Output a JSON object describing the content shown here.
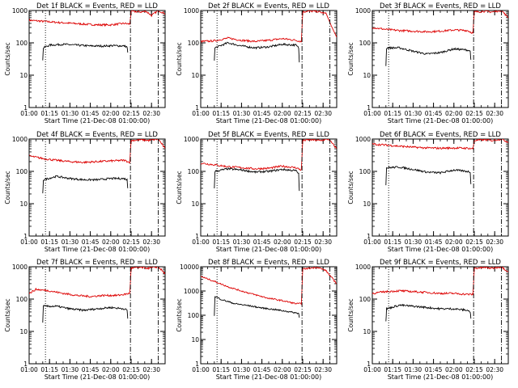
{
  "page": {
    "background": "#ffffff"
  },
  "colors": {
    "events": "#000000",
    "lld": "#dd0000",
    "axis": "#000000"
  },
  "chart_data": [
    {
      "type": "line",
      "panel": "det-1f",
      "title": "Det 1f BLACK = Events, RED = LLD",
      "xlabel": "Start Time (21-Dec-08 01:00:00)",
      "ylabel": "Counts/sec",
      "xlim": [
        0,
        100
      ],
      "ylim": [
        1,
        1000
      ],
      "yscale": "log",
      "xticks": [
        0,
        15,
        30,
        45,
        60,
        75,
        90
      ],
      "xtick_labels": [
        "01:00",
        "01:15",
        "01:30",
        "01:45",
        "02:00",
        "02:15",
        "02:30"
      ],
      "yticks": [
        1,
        10,
        100,
        1000
      ],
      "ytick_labels": [
        "1",
        "10",
        "100",
        "1000"
      ],
      "markers": [
        {
          "x": 12,
          "style": "dotted"
        },
        {
          "x": 74.5,
          "style": "dashdot"
        },
        {
          "x": 95,
          "style": "dashdot"
        }
      ],
      "series": [
        {
          "color": "#dd0000",
          "x": [
            0,
            20,
            40,
            50,
            60,
            70,
            74,
            75,
            82,
            86,
            90,
            95,
            100
          ],
          "y": [
            500,
            430,
            380,
            360,
            360,
            400,
            380,
            950,
            900,
            950,
            700,
            1000,
            800
          ]
        },
        {
          "color": "#000000",
          "x": [
            10,
            10.5,
            15,
            25,
            35,
            45,
            55,
            62,
            70,
            72,
            72.5
          ],
          "y": [
            30,
            70,
            85,
            90,
            85,
            80,
            80,
            82,
            80,
            75,
            50
          ]
        }
      ]
    },
    {
      "type": "line",
      "panel": "det-2f",
      "title": "Det 2f BLACK = Events, RED = LLD",
      "xlabel": "Start Time (21-Dec-08 01:00:00)",
      "ylabel": "Counts/sec",
      "xlim": [
        0,
        100
      ],
      "ylim": [
        1,
        1000
      ],
      "yscale": "log",
      "xticks": [
        0,
        15,
        30,
        45,
        60,
        75,
        90
      ],
      "xtick_labels": [
        "01:00",
        "01:15",
        "01:30",
        "01:45",
        "02:00",
        "02:15",
        "02:30"
      ],
      "yticks": [
        1,
        10,
        100,
        1000
      ],
      "ytick_labels": [
        "1",
        "10",
        "100",
        "1000"
      ],
      "markers": [
        {
          "x": 12,
          "style": "dotted"
        },
        {
          "x": 74.5,
          "style": "dashdot"
        },
        {
          "x": 95,
          "style": "dashdot"
        }
      ],
      "series": [
        {
          "color": "#dd0000",
          "x": [
            0,
            10,
            20,
            30,
            40,
            50,
            60,
            70,
            74,
            75,
            78,
            85,
            92,
            100
          ],
          "y": [
            110,
            115,
            140,
            120,
            110,
            120,
            135,
            120,
            110,
            900,
            950,
            950,
            800,
            150
          ]
        },
        {
          "color": "#000000",
          "x": [
            10,
            10.5,
            20,
            30,
            40,
            50,
            60,
            70,
            72,
            72.5
          ],
          "y": [
            30,
            70,
            100,
            80,
            70,
            75,
            90,
            85,
            70,
            25
          ]
        }
      ]
    },
    {
      "type": "line",
      "panel": "det-3f",
      "title": "Det 3f BLACK = Events, RED = LLD",
      "xlabel": "Start Time (21-Dec-08 01:00:00)",
      "ylabel": "Counts/sec",
      "xlim": [
        0,
        100
      ],
      "ylim": [
        1,
        1000
      ],
      "yscale": "log",
      "xticks": [
        0,
        15,
        30,
        45,
        60,
        75,
        90
      ],
      "xtick_labels": [
        "01:00",
        "01:15",
        "01:30",
        "01:45",
        "02:00",
        "02:15",
        "02:30"
      ],
      "yticks": [
        1,
        10,
        100,
        1000
      ],
      "ytick_labels": [
        "1",
        "10",
        "100",
        "1000"
      ],
      "markers": [
        {
          "x": 12,
          "style": "dotted"
        },
        {
          "x": 74.5,
          "style": "dashdot"
        },
        {
          "x": 95,
          "style": "dashdot"
        }
      ],
      "series": [
        {
          "color": "#dd0000",
          "x": [
            0,
            10,
            20,
            30,
            40,
            50,
            60,
            70,
            74,
            75,
            82,
            88,
            95,
            100
          ],
          "y": [
            300,
            260,
            240,
            230,
            220,
            230,
            250,
            240,
            200,
            900,
            950,
            900,
            1000,
            600
          ]
        },
        {
          "color": "#000000",
          "x": [
            10,
            10.5,
            20,
            30,
            40,
            50,
            60,
            70,
            72,
            72.5
          ],
          "y": [
            20,
            70,
            70,
            55,
            45,
            50,
            65,
            60,
            55,
            30
          ]
        }
      ]
    },
    {
      "type": "line",
      "panel": "det-4f",
      "title": "Det 4f BLACK = Events, RED = LLD",
      "xlabel": "Start Time (21-Dec-08 01:00:00)",
      "ylabel": "Counts/sec",
      "xlim": [
        0,
        100
      ],
      "ylim": [
        1,
        1000
      ],
      "yscale": "log",
      "xticks": [
        0,
        15,
        30,
        45,
        60,
        75,
        90
      ],
      "xtick_labels": [
        "01:00",
        "01:15",
        "01:30",
        "01:45",
        "02:00",
        "02:15",
        "02:30"
      ],
      "yticks": [
        1,
        10,
        100,
        1000
      ],
      "ytick_labels": [
        "1",
        "10",
        "100",
        "1000"
      ],
      "markers": [
        {
          "x": 12,
          "style": "dotted"
        },
        {
          "x": 74.5,
          "style": "dashdot"
        },
        {
          "x": 95,
          "style": "dashdot"
        }
      ],
      "series": [
        {
          "color": "#dd0000",
          "x": [
            0,
            10,
            20,
            30,
            40,
            50,
            60,
            70,
            74,
            75,
            82,
            88,
            95,
            100
          ],
          "y": [
            300,
            250,
            220,
            200,
            190,
            200,
            210,
            220,
            190,
            900,
            950,
            900,
            1000,
            500
          ]
        },
        {
          "color": "#000000",
          "x": [
            10,
            10.5,
            20,
            30,
            40,
            50,
            60,
            70,
            72,
            72.5
          ],
          "y": [
            20,
            55,
            70,
            60,
            55,
            55,
            60,
            60,
            55,
            30
          ]
        }
      ]
    },
    {
      "type": "line",
      "panel": "det-5f",
      "title": "Det 5f BLACK = Events, RED = LLD",
      "xlabel": "Start Time (21-Dec-08 01:00:00)",
      "ylabel": "Counts/sec",
      "xlim": [
        0,
        100
      ],
      "ylim": [
        1,
        1000
      ],
      "yscale": "log",
      "xticks": [
        0,
        15,
        30,
        45,
        60,
        75,
        90
      ],
      "xtick_labels": [
        "01:00",
        "01:15",
        "01:30",
        "01:45",
        "02:00",
        "02:15",
        "02:30"
      ],
      "yticks": [
        1,
        10,
        100,
        1000
      ],
      "ytick_labels": [
        "1",
        "10",
        "100",
        "1000"
      ],
      "markers": [
        {
          "x": 12,
          "style": "dotted"
        },
        {
          "x": 74.5,
          "style": "dashdot"
        },
        {
          "x": 95,
          "style": "dashdot"
        }
      ],
      "series": [
        {
          "color": "#dd0000",
          "x": [
            0,
            10,
            20,
            30,
            40,
            50,
            60,
            70,
            74,
            75,
            80,
            88,
            94,
            100
          ],
          "y": [
            180,
            160,
            140,
            130,
            120,
            125,
            145,
            130,
            110,
            900,
            950,
            900,
            1000,
            500
          ]
        },
        {
          "color": "#000000",
          "x": [
            10,
            10.5,
            20,
            30,
            40,
            50,
            60,
            70,
            72,
            72.5
          ],
          "y": [
            30,
            100,
            120,
            110,
            95,
            100,
            115,
            105,
            85,
            25
          ]
        }
      ]
    },
    {
      "type": "line",
      "panel": "det-6f",
      "title": "Det 6f BLACK = Events, RED = LLD",
      "xlabel": "Start Time (21-Dec-08 01:00:00)",
      "ylabel": "Counts/sec",
      "xlim": [
        0,
        100
      ],
      "ylim": [
        1,
        1000
      ],
      "yscale": "log",
      "xticks": [
        0,
        15,
        30,
        45,
        60,
        75,
        90
      ],
      "xtick_labels": [
        "01:00",
        "01:15",
        "01:30",
        "01:45",
        "02:00",
        "02:15",
        "02:30"
      ],
      "yticks": [
        1,
        10,
        100,
        1000
      ],
      "ytick_labels": [
        "1",
        "10",
        "100",
        "1000"
      ],
      "markers": [
        {
          "x": 12,
          "style": "dotted"
        },
        {
          "x": 74.5,
          "style": "dashdot"
        },
        {
          "x": 95,
          "style": "dashdot"
        }
      ],
      "series": [
        {
          "color": "#dd0000",
          "x": [
            0,
            10,
            20,
            30,
            40,
            50,
            60,
            70,
            74,
            75,
            82,
            88,
            95,
            100
          ],
          "y": [
            700,
            650,
            600,
            560,
            530,
            520,
            530,
            520,
            500,
            900,
            950,
            900,
            1000,
            800
          ]
        },
        {
          "color": "#000000",
          "x": [
            10,
            10.5,
            20,
            30,
            40,
            50,
            60,
            70,
            72,
            72.5
          ],
          "y": [
            40,
            130,
            135,
            115,
            95,
            90,
            110,
            100,
            95,
            40
          ]
        }
      ]
    },
    {
      "type": "line",
      "panel": "det-7f",
      "title": "Det 7f BLACK = Events, RED = LLD",
      "xlabel": "Start Time (21-Dec-08 01:00:00)",
      "ylabel": "Counts/sec",
      "xlim": [
        0,
        100
      ],
      "ylim": [
        1,
        1000
      ],
      "yscale": "log",
      "xticks": [
        0,
        15,
        30,
        45,
        60,
        75,
        90
      ],
      "xtick_labels": [
        "01:00",
        "01:15",
        "01:30",
        "01:45",
        "02:00",
        "02:15",
        "02:30"
      ],
      "yticks": [
        1,
        10,
        100,
        1000
      ],
      "ytick_labels": [
        "1",
        "10",
        "100",
        "1000"
      ],
      "markers": [
        {
          "x": 12,
          "style": "dotted"
        },
        {
          "x": 74.5,
          "style": "dashdot"
        },
        {
          "x": 95,
          "style": "dashdot"
        }
      ],
      "series": [
        {
          "color": "#dd0000",
          "x": [
            0,
            5,
            15,
            25,
            35,
            45,
            55,
            65,
            70,
            74,
            75,
            82,
            88,
            95,
            100
          ],
          "y": [
            150,
            200,
            180,
            150,
            130,
            120,
            130,
            130,
            140,
            150,
            900,
            950,
            900,
            1000,
            600
          ]
        },
        {
          "color": "#000000",
          "x": [
            10,
            10.5,
            20,
            30,
            40,
            50,
            60,
            70,
            72,
            72.5
          ],
          "y": [
            20,
            60,
            60,
            50,
            45,
            50,
            55,
            50,
            45,
            25
          ]
        }
      ]
    },
    {
      "type": "line",
      "panel": "det-8f",
      "title": "Det 8f BLACK = Events, RED = LLD",
      "xlabel": "Start Time (21-Dec-08 01:00:00)",
      "ylabel": "Counts/sec",
      "xlim": [
        0,
        100
      ],
      "ylim": [
        1,
        10000
      ],
      "yscale": "log",
      "xticks": [
        0,
        15,
        30,
        45,
        60,
        75,
        90
      ],
      "xtick_labels": [
        "01:00",
        "01:15",
        "01:30",
        "01:45",
        "02:00",
        "02:15",
        "02:30"
      ],
      "yticks": [
        1,
        10,
        100,
        1000,
        10000
      ],
      "ytick_labels": [
        "1",
        "10",
        "100",
        "1000",
        "10000"
      ],
      "markers": [
        {
          "x": 12,
          "style": "dotted"
        },
        {
          "x": 74.5,
          "style": "dashdot"
        },
        {
          "x": 95,
          "style": "dashdot"
        }
      ],
      "series": [
        {
          "color": "#dd0000",
          "x": [
            0,
            10,
            20,
            30,
            40,
            50,
            60,
            70,
            74,
            75,
            82,
            86,
            92,
            100
          ],
          "y": [
            4000,
            2500,
            1500,
            1000,
            700,
            500,
            400,
            300,
            300,
            8000,
            9000,
            9500,
            7000,
            2000
          ]
        },
        {
          "color": "#000000",
          "x": [
            10,
            10.5,
            15,
            25,
            35,
            45,
            55,
            65,
            72,
            72.5
          ],
          "y": [
            100,
            600,
            450,
            300,
            250,
            200,
            170,
            140,
            120,
            80
          ]
        }
      ]
    },
    {
      "type": "line",
      "panel": "det-9f",
      "title": "Det 9f BLACK = Events, RED = LLD",
      "xlabel": "Start Time (21-Dec-08 01:00:00)",
      "ylabel": "Counts/sec",
      "xlim": [
        0,
        100
      ],
      "ylim": [
        1,
        1000
      ],
      "yscale": "log",
      "xticks": [
        0,
        15,
        30,
        45,
        60,
        75,
        90
      ],
      "xtick_labels": [
        "01:00",
        "01:15",
        "01:30",
        "01:45",
        "02:00",
        "02:15",
        "02:30"
      ],
      "yticks": [
        1,
        10,
        100,
        1000
      ],
      "ytick_labels": [
        "1",
        "10",
        "100",
        "1000"
      ],
      "markers": [
        {
          "x": 12,
          "style": "dotted"
        },
        {
          "x": 74.5,
          "style": "dashdot"
        },
        {
          "x": 95,
          "style": "dashdot"
        }
      ],
      "series": [
        {
          "color": "#dd0000",
          "x": [
            0,
            10,
            20,
            30,
            40,
            50,
            60,
            70,
            74,
            75,
            82,
            88,
            95,
            100
          ],
          "y": [
            150,
            170,
            180,
            170,
            160,
            150,
            150,
            140,
            140,
            900,
            950,
            900,
            1000,
            700
          ]
        },
        {
          "color": "#000000",
          "x": [
            10,
            10.5,
            20,
            30,
            40,
            50,
            60,
            70,
            72,
            72.5
          ],
          "y": [
            20,
            50,
            65,
            60,
            55,
            50,
            50,
            45,
            40,
            25
          ]
        }
      ]
    }
  ]
}
